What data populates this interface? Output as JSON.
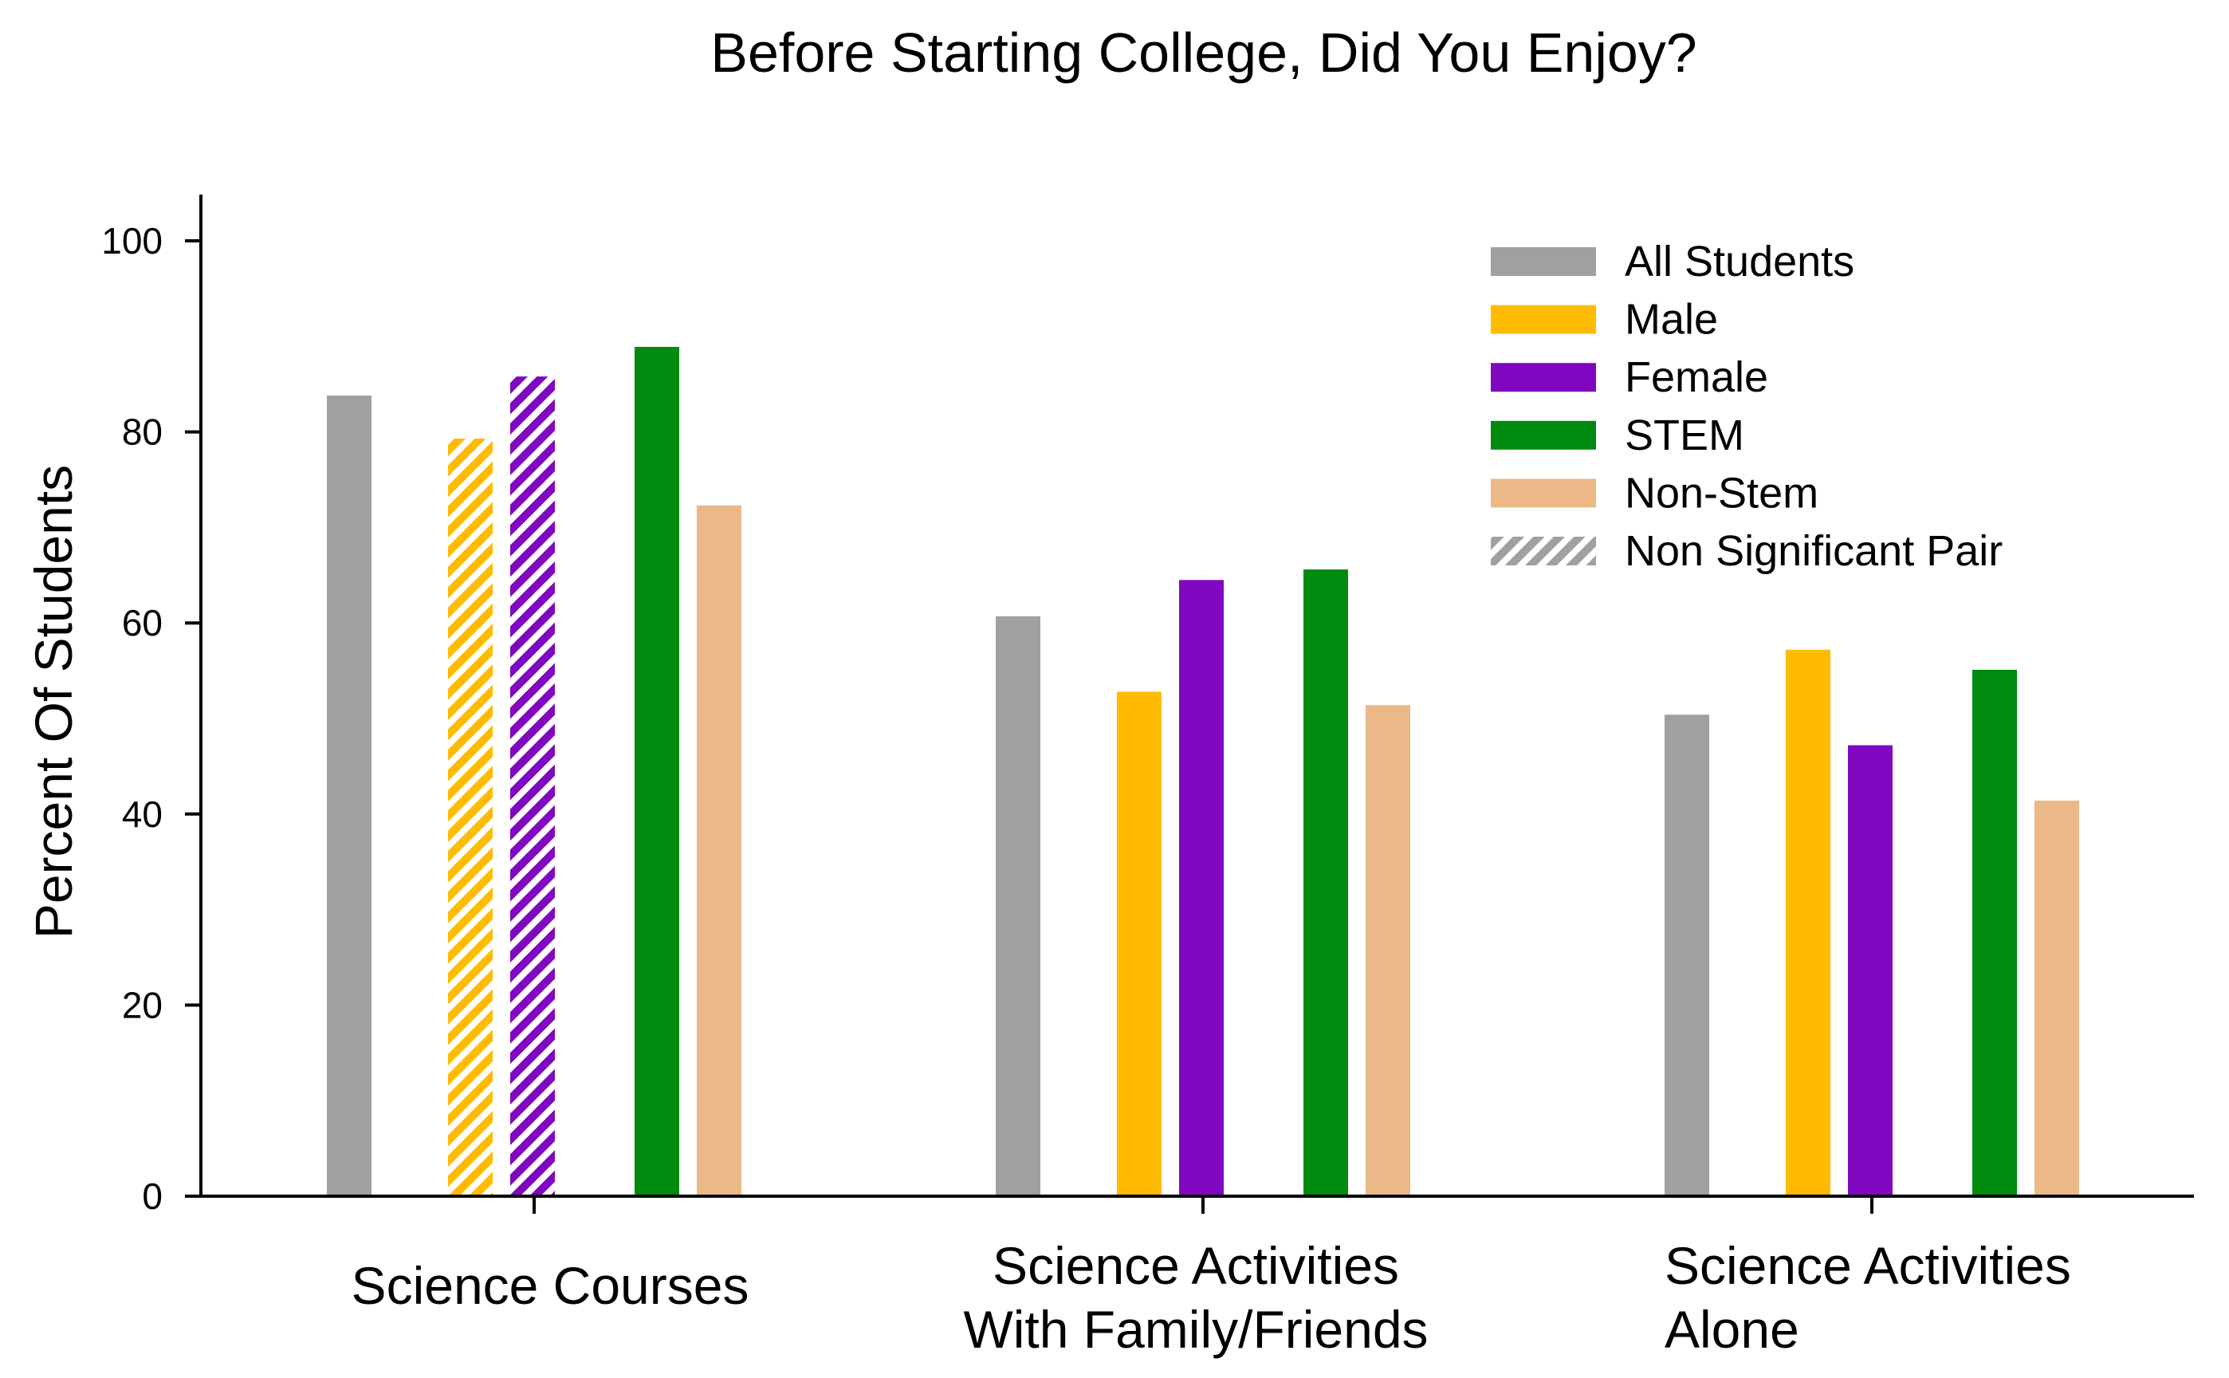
{
  "chart_data": {
    "type": "bar",
    "title": "Before Starting College, Did You Enjoy?",
    "ylabel": "Percent Of Students",
    "xlabel": "",
    "ylim": [
      0,
      105
    ],
    "yticks": [
      0,
      20,
      40,
      60,
      80,
      100
    ],
    "grid": false,
    "legend_position": "top-right",
    "categories": [
      [
        "Science Courses"
      ],
      [
        "Science Activities",
        "With Family/Friends"
      ],
      [
        "Science Activities",
        "Alone"
      ]
    ],
    "series": [
      {
        "name": "All Students",
        "color": "#a0a0a0",
        "values": [
          83.8,
          60.7,
          50.4
        ],
        "nonsignificant": [
          false,
          false,
          false
        ]
      },
      {
        "name": "Male",
        "color": "#ffbb00",
        "values": [
          79.3,
          52.8,
          57.2
        ],
        "nonsignificant": [
          true,
          false,
          false
        ]
      },
      {
        "name": "Female",
        "color": "#8008c0",
        "values": [
          85.8,
          64.5,
          47.2
        ],
        "nonsignificant": [
          true,
          false,
          false
        ]
      },
      {
        "name": "STEM",
        "color": "#008a10",
        "values": [
          88.9,
          65.6,
          55.1
        ],
        "nonsignificant": [
          false,
          false,
          false
        ]
      },
      {
        "name": "Non-Stem",
        "color": "#ebb888",
        "values": [
          72.3,
          51.4,
          41.4
        ],
        "nonsignificant": [
          false,
          false,
          false
        ]
      }
    ],
    "legend_extra": {
      "name": "Non Significant Pair",
      "color": "#a0a0a0",
      "pattern": "hatch"
    }
  }
}
